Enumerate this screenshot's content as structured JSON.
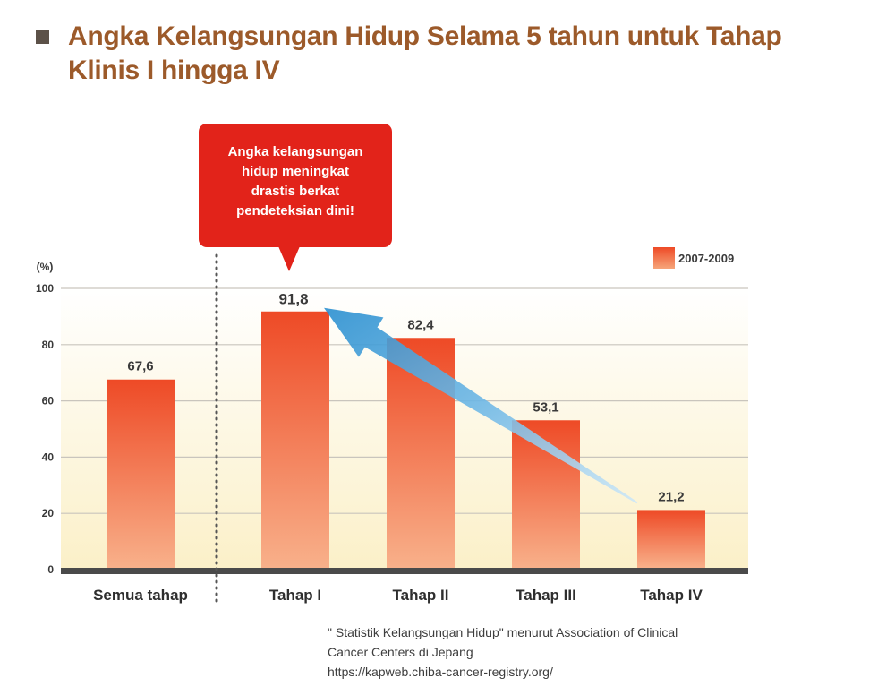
{
  "title": "Angka Kelangsungan Hidup Selama 5 tahun untuk Tahap Klinis I hingga IV",
  "callout": {
    "lines": [
      "Angka kelangsungan",
      "hidup meningkat",
      "drastis berkat",
      "pendeteksian dini!"
    ]
  },
  "legend": {
    "label": "2007-2009"
  },
  "source": {
    "line1": "\" Statistik Kelangsungan Hidup\" menurut Association of Clinical",
    "line2": "Cancer Centers di Jepang",
    "line3": "https://kapweb.chiba-cancer-registry.org/"
  },
  "colors": {
    "bar_top": "#ee4a26",
    "bar_bottom": "#f8b08a",
    "callout": "#e2231a",
    "arrow": "#2a8fd0",
    "title": "#9c5a2a"
  },
  "chart_data": {
    "type": "bar",
    "title": "Angka Kelangsungan Hidup Selama 5 tahun untuk Tahap Klinis I hingga IV",
    "ylabel": "(%)",
    "xlabel": "",
    "ylim": [
      0,
      100
    ],
    "yticks": [
      0,
      20,
      40,
      60,
      80,
      100
    ],
    "categories": [
      "Semua tahap",
      "Tahap I",
      "Tahap II",
      "Tahap III",
      "Tahap IV"
    ],
    "series": [
      {
        "name": "2007-2009",
        "values": [
          67.6,
          91.8,
          82.4,
          53.1,
          21.2
        ]
      }
    ],
    "value_labels": [
      "67,6",
      "91,8",
      "82,4",
      "53,1",
      "21,2"
    ],
    "grid": true,
    "legend_position": "top-right",
    "annotations": [
      {
        "type": "arrow",
        "from_category": "Tahap IV",
        "to_category": "Tahap I"
      },
      {
        "type": "divider",
        "between": [
          "Semua tahap",
          "Tahap I"
        ]
      }
    ]
  }
}
